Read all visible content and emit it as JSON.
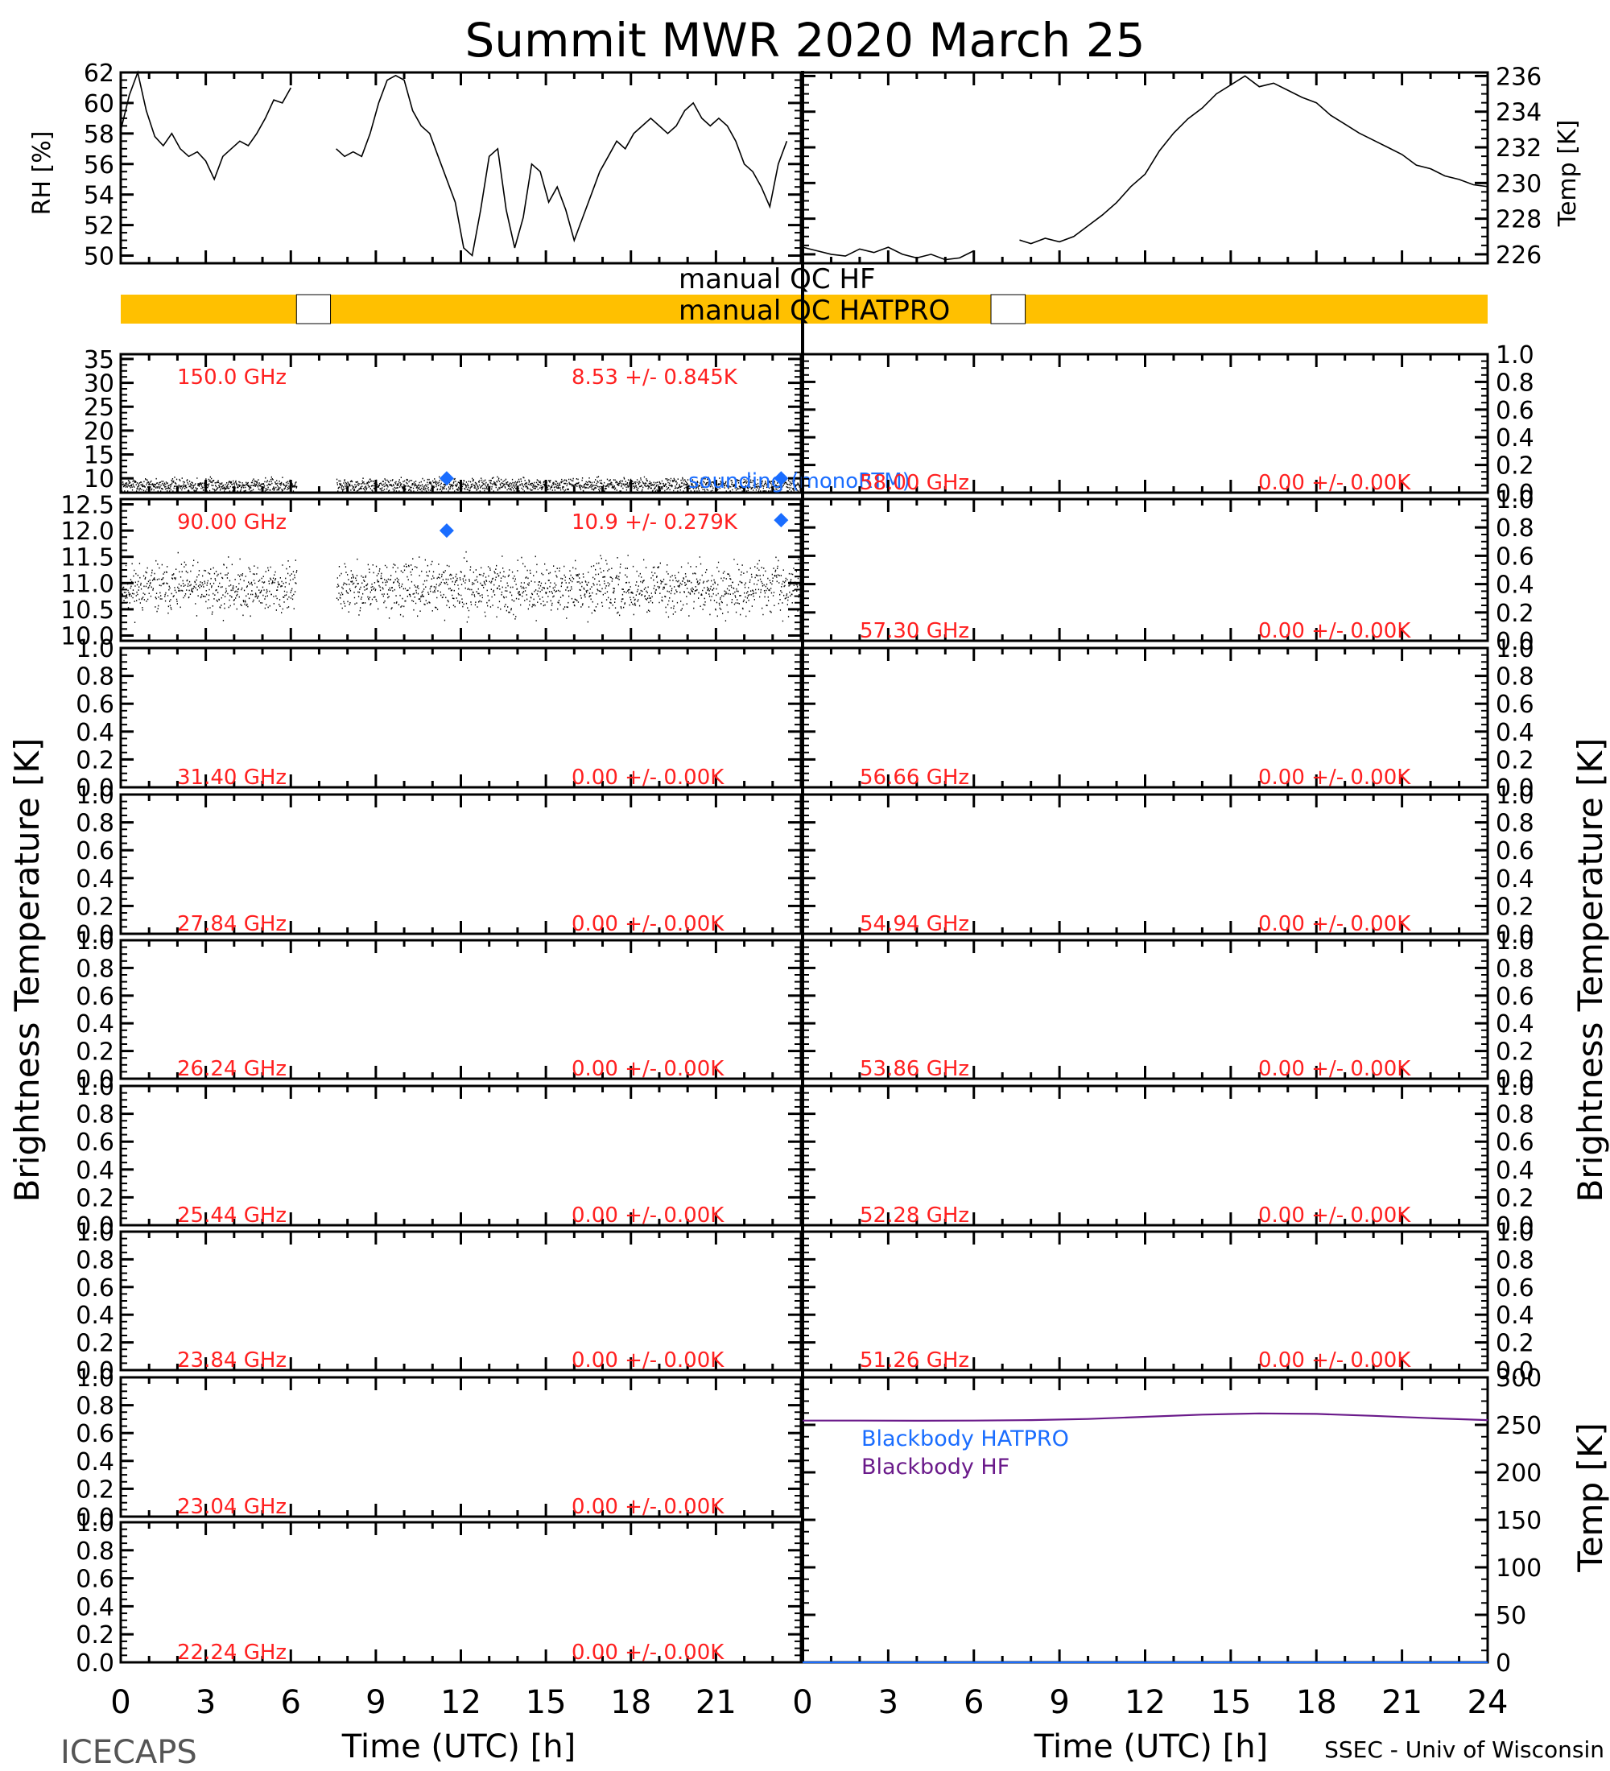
{
  "title": "Summit MWR 2020 March 25",
  "footer": {
    "left": "ICECAPS",
    "right": "SSEC - Univ of Wisconsin",
    "xlabel_left": "Time (UTC) [h]",
    "xlabel_right": "Time (UTC) [h]"
  },
  "axes_labels": {
    "rh": "RH [%]",
    "temp_top": "Temp [K]",
    "bt_left": "Brightness Temperature [K]",
    "bt_right": "Brightness Temperature [K]",
    "temp_bottom": "Temp [K]"
  },
  "colors": {
    "red": "#ff2020",
    "blue": "#1a6dff",
    "purple": "#6a1a8a",
    "qc_bar": "#ffc000",
    "black": "#000000"
  },
  "qc": {
    "hf_label": "manual QC HF",
    "hatpro_label": "manual QC HATPRO"
  },
  "chart_data": [
    {
      "id": "rh",
      "type": "line",
      "ylabel": "RH [%]",
      "ylim": [
        49.5,
        62
      ],
      "xlim": [
        0,
        24
      ],
      "yticks": [
        50,
        52,
        54,
        56,
        58,
        60,
        62
      ],
      "x": [
        0,
        0.3,
        0.6,
        0.9,
        1.2,
        1.5,
        1.8,
        2.1,
        2.4,
        2.7,
        3.0,
        3.3,
        3.6,
        3.9,
        4.2,
        4.5,
        4.8,
        5.1,
        5.4,
        5.7,
        6.0,
        null,
        7.6,
        7.9,
        8.2,
        8.5,
        8.8,
        9.1,
        9.4,
        9.7,
        10.0,
        10.3,
        10.6,
        10.9,
        11.2,
        11.5,
        11.8,
        12.1,
        12.4,
        12.7,
        13.0,
        13.3,
        13.6,
        13.9,
        14.2,
        14.5,
        14.8,
        15.1,
        15.4,
        15.7,
        16.0,
        16.3,
        16.6,
        16.9,
        17.2,
        17.5,
        17.8,
        18.1,
        18.4,
        18.7,
        19.0,
        19.3,
        19.6,
        19.9,
        20.2,
        20.5,
        20.8,
        21.1,
        21.4,
        21.7,
        22.0,
        22.3,
        22.6,
        22.9,
        23.2,
        23.5
      ],
      "y": [
        58.2,
        60.5,
        62.0,
        59.5,
        57.8,
        57.2,
        58.0,
        57.0,
        56.5,
        56.8,
        56.2,
        55.0,
        56.5,
        57.0,
        57.5,
        57.2,
        58.0,
        59.0,
        60.2,
        60.0,
        61.0,
        null,
        57.0,
        56.5,
        56.8,
        56.5,
        58.0,
        60.0,
        61.5,
        61.8,
        61.5,
        59.5,
        58.5,
        58.0,
        56.5,
        55.0,
        53.5,
        50.5,
        50.0,
        53.0,
        56.5,
        57.0,
        53.0,
        50.5,
        52.5,
        56.0,
        55.5,
        53.5,
        54.5,
        53.0,
        51.0,
        52.5,
        54.0,
        55.5,
        56.5,
        57.5,
        57.0,
        58.0,
        58.5,
        59.0,
        58.5,
        58.0,
        58.5,
        59.5,
        60.0,
        59.0,
        58.5,
        59.0,
        58.5,
        57.5,
        56.0,
        55.5,
        54.5,
        53.2,
        56.0,
        57.5
      ]
    },
    {
      "id": "temp_air",
      "type": "line",
      "ylabel": "Temp [K]",
      "ylim": [
        225.5,
        236.2
      ],
      "xlim": [
        0,
        24
      ],
      "yticks": [
        226,
        228,
        230,
        232,
        234,
        236
      ],
      "x": [
        0,
        0.5,
        1.0,
        1.5,
        2.0,
        2.5,
        3.0,
        3.5,
        4.0,
        4.5,
        5.0,
        5.5,
        6.0,
        null,
        7.6,
        8.0,
        8.5,
        9.0,
        9.5,
        10.0,
        10.5,
        11.0,
        11.5,
        12.0,
        12.5,
        13.0,
        13.5,
        14.0,
        14.5,
        15.0,
        15.5,
        16.0,
        16.5,
        17.0,
        17.5,
        18.0,
        18.5,
        19.0,
        19.5,
        20.0,
        20.5,
        21.0,
        21.5,
        22.0,
        22.5,
        23.0,
        23.5,
        24.0
      ],
      "y": [
        226.4,
        226.2,
        226.0,
        225.9,
        226.3,
        226.1,
        226.4,
        226.0,
        225.8,
        226.0,
        225.7,
        225.8,
        226.2,
        null,
        226.8,
        226.6,
        226.9,
        226.7,
        227.0,
        227.6,
        228.2,
        228.9,
        229.8,
        230.5,
        231.8,
        232.8,
        233.6,
        234.2,
        235.0,
        235.5,
        236.0,
        235.4,
        235.6,
        235.2,
        234.8,
        234.5,
        233.8,
        233.3,
        232.8,
        232.4,
        232.0,
        231.6,
        231.0,
        230.8,
        230.4,
        230.2,
        229.9,
        229.8
      ]
    },
    {
      "id": "qc_bars",
      "type": "bar",
      "series": [
        {
          "name": "manual QC HF",
          "segments": []
        },
        {
          "name": "manual QC HATPRO",
          "segments": [
            [
              0,
              24
            ]
          ],
          "gaps": [
            [
              6.2,
              7.4
            ],
            [
              30.6,
              31.8
            ]
          ]
        }
      ]
    },
    {
      "id": "bt150",
      "type": "scatter",
      "freq_label": "150.0 GHz",
      "stat_label": "8.53 +/- 0.845K",
      "ylim": [
        7,
        36
      ],
      "xlim": [
        0,
        24
      ],
      "yticks": [
        10,
        15,
        20,
        25,
        30,
        35
      ],
      "mean": 8.53,
      "std": 0.845,
      "gaps": [
        [
          6.2,
          7.6
        ]
      ],
      "soundings": [
        {
          "x": 11.5,
          "y": 10.0
        },
        {
          "x": 23.3,
          "y": 10.0
        }
      ],
      "annotation": "sounding (monoRTM)"
    },
    {
      "id": "bt90",
      "type": "scatter",
      "freq_label": "90.00 GHz",
      "stat_label": "10.9 +/- 0.279K",
      "ylim": [
        9.9,
        12.6
      ],
      "xlim": [
        0,
        24
      ],
      "yticks": [
        10.0,
        10.5,
        11.0,
        11.5,
        12.0,
        12.5
      ],
      "mean": 10.9,
      "std": 0.279,
      "gaps": [
        [
          6.2,
          7.6
        ]
      ],
      "soundings": [
        {
          "x": 11.5,
          "y": 12.0
        },
        {
          "x": 23.3,
          "y": 12.2
        }
      ]
    },
    {
      "id": "b31",
      "type": "line",
      "freq_label": "31.40 GHz",
      "stat_label": "0.00 +/- 0.00K",
      "ylim": [
        0,
        1
      ],
      "yticks": [
        0.0,
        0.2,
        0.4,
        0.6,
        0.8,
        1.0
      ]
    },
    {
      "id": "b278",
      "type": "line",
      "freq_label": "27.84 GHz",
      "stat_label": "0.00 +/- 0.00K",
      "ylim": [
        0,
        1
      ],
      "yticks": [
        0.0,
        0.2,
        0.4,
        0.6,
        0.8,
        1.0
      ]
    },
    {
      "id": "b262",
      "type": "line",
      "freq_label": "26.24 GHz",
      "stat_label": "0.00 +/- 0.00K",
      "ylim": [
        0,
        1
      ],
      "yticks": [
        0.0,
        0.2,
        0.4,
        0.6,
        0.8,
        1.0
      ]
    },
    {
      "id": "b254",
      "type": "line",
      "freq_label": "25.44 GHz",
      "stat_label": "0.00 +/- 0.00K",
      "ylim": [
        0,
        1
      ],
      "yticks": [
        0.0,
        0.2,
        0.4,
        0.6,
        0.8,
        1.0
      ]
    },
    {
      "id": "b238",
      "type": "line",
      "freq_label": "23.84 GHz",
      "stat_label": "0.00 +/- 0.00K",
      "ylim": [
        0,
        1
      ],
      "yticks": [
        0.0,
        0.2,
        0.4,
        0.6,
        0.8,
        1.0
      ]
    },
    {
      "id": "b230",
      "type": "line",
      "freq_label": "23.04 GHz",
      "stat_label": "0.00 +/- 0.00K",
      "ylim": [
        0,
        1
      ],
      "yticks": [
        0.0,
        0.2,
        0.4,
        0.6,
        0.8,
        1.0
      ]
    },
    {
      "id": "b222",
      "type": "line",
      "freq_label": "22.24 GHz",
      "stat_label": "0.00 +/- 0.00K",
      "ylim": [
        0,
        1
      ],
      "yticks": [
        0.0,
        0.2,
        0.4,
        0.6,
        0.8,
        1.0
      ]
    },
    {
      "id": "b580",
      "type": "line",
      "freq_label": "58.00 GHz",
      "stat_label": "0.00 +/- 0.00K",
      "ylim": [
        0,
        1
      ],
      "yticks": [
        0.0,
        0.2,
        0.4,
        0.6,
        0.8,
        1.0
      ]
    },
    {
      "id": "b573",
      "type": "line",
      "freq_label": "57.30 GHz",
      "stat_label": "0.00 +/- 0.00K",
      "ylim": [
        0,
        1
      ],
      "yticks": [
        0.0,
        0.2,
        0.4,
        0.6,
        0.8,
        1.0
      ]
    },
    {
      "id": "b566",
      "type": "line",
      "freq_label": "56.66 GHz",
      "stat_label": "0.00 +/- 0.00K",
      "ylim": [
        0,
        1
      ],
      "yticks": [
        0.0,
        0.2,
        0.4,
        0.6,
        0.8,
        1.0
      ]
    },
    {
      "id": "b549",
      "type": "line",
      "freq_label": "54.94 GHz",
      "stat_label": "0.00 +/- 0.00K",
      "ylim": [
        0,
        1
      ],
      "yticks": [
        0.0,
        0.2,
        0.4,
        0.6,
        0.8,
        1.0
      ]
    },
    {
      "id": "b538",
      "type": "line",
      "freq_label": "53.86 GHz",
      "stat_label": "0.00 +/- 0.00K",
      "ylim": [
        0,
        1
      ],
      "yticks": [
        0.0,
        0.2,
        0.4,
        0.6,
        0.8,
        1.0
      ]
    },
    {
      "id": "b522",
      "type": "line",
      "freq_label": "52.28 GHz",
      "stat_label": "0.00 +/- 0.00K",
      "ylim": [
        0,
        1
      ],
      "yticks": [
        0.0,
        0.2,
        0.4,
        0.6,
        0.8,
        1.0
      ]
    },
    {
      "id": "b512",
      "type": "line",
      "freq_label": "51.26 GHz",
      "stat_label": "0.00 +/- 0.00K",
      "ylim": [
        0,
        1
      ],
      "yticks": [
        0.0,
        0.2,
        0.4,
        0.6,
        0.8,
        1.0
      ]
    },
    {
      "id": "blackbody",
      "type": "line",
      "ylabel": "Temp [K]",
      "ylim": [
        0,
        300
      ],
      "xlim": [
        0,
        24
      ],
      "yticks": [
        0,
        50,
        100,
        150,
        200,
        250,
        300
      ],
      "series": [
        {
          "name": "Blackbody HATPRO",
          "color": "#1a6dff",
          "x": [
            0,
            24
          ],
          "y": [
            0,
            0
          ]
        },
        {
          "name": "Blackbody HF",
          "color": "#6a1a8a",
          "x": [
            0,
            2,
            4,
            6,
            8,
            10,
            12,
            14,
            16,
            18,
            20,
            22,
            24
          ],
          "y": [
            254.5,
            254.5,
            254.3,
            254.5,
            255.0,
            256.2,
            258.5,
            260.8,
            262.0,
            261.5,
            259.5,
            257.0,
            255.0
          ]
        }
      ]
    }
  ],
  "xticks": [
    0,
    3,
    6,
    9,
    12,
    15,
    18,
    21,
    24
  ],
  "xtick_labels_left": [
    "0",
    "3",
    "6",
    "9",
    "12",
    "15",
    "18",
    "21"
  ],
  "xtick_labels_right": [
    "0",
    "3",
    "6",
    "9",
    "12",
    "15",
    "18",
    "21",
    "24"
  ]
}
